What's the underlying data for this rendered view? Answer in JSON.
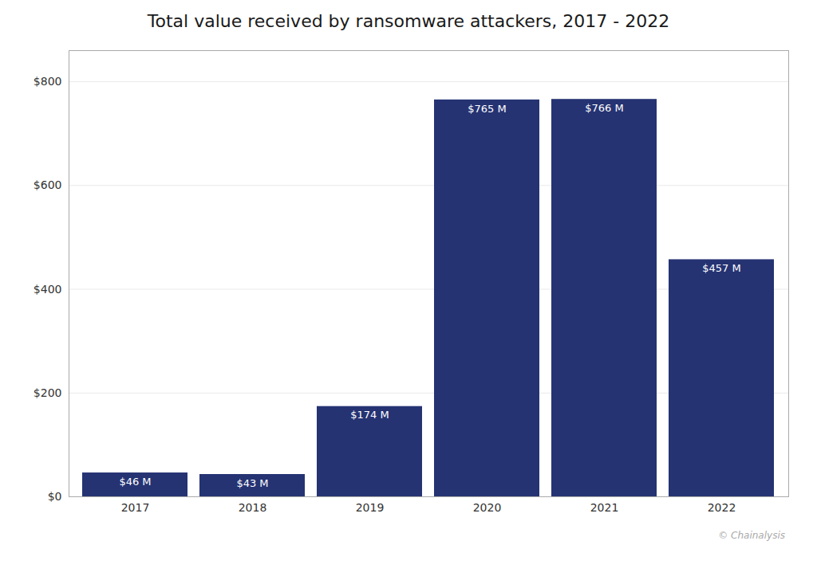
{
  "chart_data": {
    "type": "bar",
    "title": "Total value received by ransomware attackers, 2017 - 2022",
    "categories": [
      "2017",
      "2018",
      "2019",
      "2020",
      "2021",
      "2022"
    ],
    "values": [
      46,
      43,
      174,
      765,
      766,
      457
    ],
    "value_labels": [
      "$46 M",
      "$43 M",
      "$174 M",
      "$765 M",
      "$766 M",
      "$457 M"
    ],
    "data_labels": true,
    "color": "#253373",
    "ylim": [
      0,
      860
    ],
    "yticks": [
      {
        "value": 0,
        "label": "$0"
      },
      {
        "value": 200,
        "label": "$200"
      },
      {
        "value": 400,
        "label": "$400"
      },
      {
        "value": 600,
        "label": "$600"
      },
      {
        "value": 800,
        "label": "$800"
      }
    ],
    "grid": true,
    "annotations": [
      "© Chainalysis"
    ]
  }
}
